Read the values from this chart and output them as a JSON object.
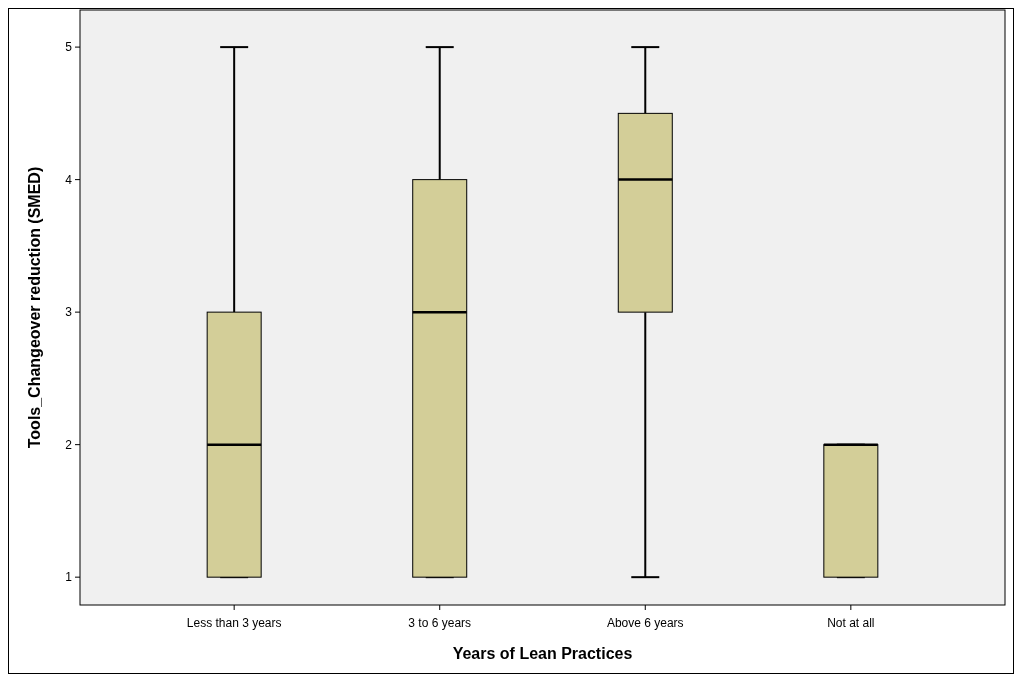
{
  "chart_data": {
    "type": "box",
    "xlabel": "Years of Lean Practices",
    "ylabel": "Tools_Changeover reduction (SMED)",
    "categories": [
      "Less than 3 years",
      "3 to 6 years",
      "Above 6 years",
      "Not at all"
    ],
    "color": "#d3ce98",
    "ylim": [
      0.79,
      5.28
    ],
    "yticks": [
      1,
      2,
      3,
      4,
      5
    ],
    "grid": false,
    "boxes": [
      {
        "low": 1,
        "q1": 1,
        "median": 2,
        "q3": 3,
        "high": 5
      },
      {
        "low": 1,
        "q1": 1,
        "median": 3,
        "q3": 4,
        "high": 5
      },
      {
        "low": 1,
        "q1": 3,
        "median": 4,
        "q3": 4.5,
        "high": 5
      },
      {
        "low": 1,
        "q1": 1,
        "median": 2,
        "q3": 2,
        "high": 2
      }
    ]
  }
}
